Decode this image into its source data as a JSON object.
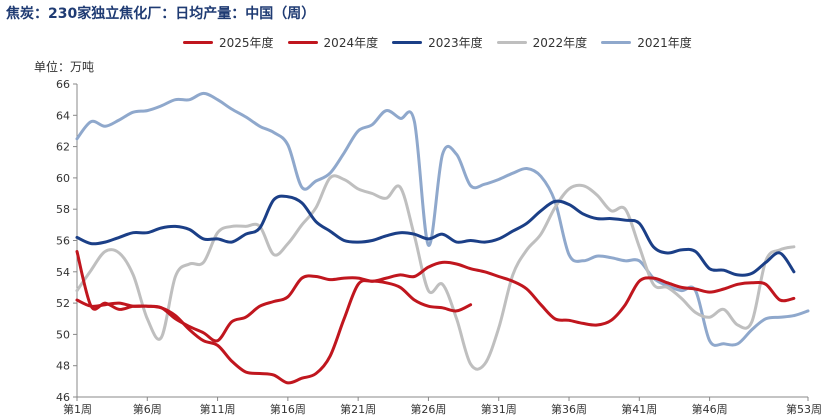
{
  "title": "焦炭：230家独立焦化厂：日均产量：中国（周）",
  "unit_label": "单位：万吨",
  "chart_data": {
    "type": "line",
    "title": "焦炭：230家独立焦化厂：日均产量：中国（周）",
    "ylabel": "单位：万吨",
    "xlabel": "",
    "ylim": [
      46,
      66
    ],
    "yticks": [
      46,
      48,
      50,
      52,
      54,
      56,
      58,
      60,
      62,
      64,
      66
    ],
    "xlim": [
      1,
      53
    ],
    "xticks": [
      1,
      6,
      11,
      16,
      21,
      26,
      31,
      36,
      41,
      46,
      53
    ],
    "xtick_labels": [
      "第1周",
      "第6周",
      "第11周",
      "第16周",
      "第21周",
      "第26周",
      "第31周",
      "第36周",
      "第41周",
      "第46周",
      "第53周"
    ],
    "legend_position": "top-center",
    "grid": false,
    "series": [
      {
        "name": "2025年度",
        "color": "#c0161e",
        "x": [
          1,
          2,
          3,
          4,
          5,
          6,
          7,
          8,
          9,
          10,
          11,
          12,
          13,
          14,
          15,
          16,
          17,
          18,
          19,
          20,
          21,
          22,
          23,
          24,
          25,
          26,
          27,
          28,
          29
        ],
        "values": [
          55.3,
          51.8,
          52.0,
          51.6,
          51.8,
          51.8,
          51.7,
          51.2,
          50.3,
          49.6,
          49.3,
          48.3,
          47.6,
          47.5,
          47.4,
          46.9,
          47.2,
          47.5,
          48.6,
          51.0,
          53.2,
          53.4,
          53.3,
          53.0,
          52.2,
          51.8,
          51.7,
          51.5,
          51.9
        ]
      },
      {
        "name": "2024年度",
        "color": "#c0161e",
        "x": [
          1,
          2,
          3,
          4,
          5,
          6,
          7,
          8,
          9,
          10,
          11,
          12,
          13,
          14,
          15,
          16,
          17,
          18,
          19,
          20,
          21,
          22,
          23,
          24,
          25,
          26,
          27,
          28,
          29,
          30,
          31,
          32,
          33,
          34,
          35,
          36,
          37,
          38,
          39,
          40,
          41,
          42,
          43,
          44,
          45,
          46,
          47,
          48,
          49,
          50,
          51,
          52
        ],
        "values": [
          52.2,
          51.8,
          51.9,
          52.0,
          51.8,
          51.8,
          51.7,
          51.0,
          50.5,
          50.1,
          49.6,
          50.8,
          51.1,
          51.8,
          52.1,
          52.4,
          53.6,
          53.7,
          53.5,
          53.6,
          53.6,
          53.4,
          53.6,
          53.8,
          53.7,
          54.3,
          54.6,
          54.5,
          54.2,
          54.0,
          53.7,
          53.4,
          52.9,
          51.9,
          51.0,
          50.9,
          50.7,
          50.6,
          50.9,
          51.9,
          53.4,
          53.6,
          53.3,
          53.0,
          52.9,
          52.7,
          52.9,
          53.2,
          53.3,
          53.2,
          52.2,
          52.3
        ]
      },
      {
        "name": "2023年度",
        "color": "#1b3f87",
        "x": [
          1,
          2,
          3,
          4,
          5,
          6,
          7,
          8,
          9,
          10,
          11,
          12,
          13,
          14,
          15,
          16,
          17,
          18,
          19,
          20,
          21,
          22,
          23,
          24,
          25,
          26,
          27,
          28,
          29,
          30,
          31,
          32,
          33,
          34,
          35,
          36,
          37,
          38,
          39,
          40,
          41,
          42,
          43,
          44,
          45,
          46,
          47,
          48,
          49,
          50,
          51,
          52
        ],
        "values": [
          56.2,
          55.8,
          55.9,
          56.2,
          56.5,
          56.5,
          56.8,
          56.9,
          56.7,
          56.1,
          56.1,
          55.9,
          56.4,
          56.8,
          58.6,
          58.8,
          58.4,
          57.2,
          56.6,
          56.0,
          55.9,
          56.0,
          56.3,
          56.5,
          56.4,
          56.1,
          56.4,
          55.9,
          56.0,
          55.9,
          56.1,
          56.6,
          57.1,
          57.9,
          58.5,
          58.3,
          57.7,
          57.4,
          57.4,
          57.3,
          57.1,
          55.6,
          55.2,
          55.4,
          55.3,
          54.2,
          54.1,
          53.8,
          53.9,
          54.6,
          55.2,
          54.0
        ]
      },
      {
        "name": "2022年度",
        "color": "#bfbfbf",
        "x": [
          1,
          2,
          3,
          4,
          5,
          6,
          7,
          8,
          9,
          10,
          11,
          12,
          13,
          14,
          15,
          16,
          17,
          18,
          19,
          20,
          21,
          22,
          23,
          24,
          25,
          26,
          27,
          28,
          29,
          30,
          31,
          32,
          33,
          34,
          35,
          36,
          37,
          38,
          39,
          40,
          41,
          42,
          43,
          44,
          45,
          46,
          47,
          48,
          49,
          50,
          51,
          52
        ],
        "values": [
          52.8,
          54.1,
          55.3,
          55.2,
          53.8,
          51.0,
          49.8,
          53.7,
          54.5,
          54.6,
          56.5,
          56.9,
          56.9,
          56.9,
          55.1,
          55.8,
          57.0,
          58.1,
          60.0,
          59.9,
          59.3,
          59.0,
          58.7,
          59.4,
          56.3,
          52.8,
          53.2,
          51.0,
          48.1,
          48.1,
          50.4,
          53.8,
          55.4,
          56.4,
          58.1,
          59.3,
          59.5,
          58.9,
          57.9,
          58.0,
          55.6,
          53.2,
          53.0,
          52.3,
          51.4,
          51.1,
          51.6,
          50.6,
          50.8,
          54.7,
          55.4,
          55.6
        ]
      },
      {
        "name": "2021年度",
        "color": "#8fa8cc",
        "x": [
          1,
          2,
          3,
          4,
          5,
          6,
          7,
          8,
          9,
          10,
          11,
          12,
          13,
          14,
          15,
          16,
          17,
          18,
          19,
          20,
          21,
          22,
          23,
          24,
          25,
          26,
          27,
          28,
          29,
          30,
          31,
          32,
          33,
          34,
          35,
          36,
          37,
          38,
          39,
          40,
          41,
          42,
          43,
          44,
          45,
          46,
          47,
          48,
          49,
          50,
          51,
          52,
          53
        ],
        "values": [
          62.5,
          63.6,
          63.3,
          63.7,
          64.2,
          64.3,
          64.6,
          65.0,
          65.0,
          65.4,
          65.0,
          64.4,
          63.9,
          63.3,
          62.9,
          62.1,
          59.4,
          59.8,
          60.3,
          61.6,
          63.0,
          63.4,
          64.3,
          63.8,
          63.6,
          55.7,
          61.5,
          61.5,
          59.5,
          59.6,
          59.9,
          60.3,
          60.6,
          60.1,
          58.5,
          55.1,
          54.7,
          55.0,
          54.9,
          54.7,
          54.7,
          53.6,
          53.1,
          52.8,
          52.8,
          49.6,
          49.4,
          49.4,
          50.3,
          51.0,
          51.1,
          51.2,
          51.5
        ]
      }
    ]
  }
}
